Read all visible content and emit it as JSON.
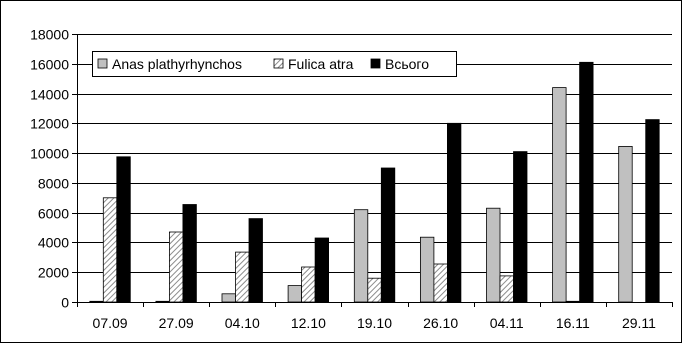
{
  "chart_data": {
    "type": "bar",
    "title": "",
    "xlabel": "",
    "ylabel": "",
    "categories": [
      "07.09",
      "27.09",
      "04.10",
      "12.10",
      "19.10",
      "26.10",
      "04.11",
      "16.11",
      "29.11"
    ],
    "ylim": [
      0,
      18000
    ],
    "yticks": [
      "0",
      "2000",
      "4000",
      "6000",
      "8000",
      "10000",
      "12000",
      "14000",
      "16000",
      "18000"
    ],
    "grid": true,
    "legend_position": "top-left",
    "series": [
      {
        "name": "Anas plathyrhynchos",
        "color": "#c0c0c0",
        "pattern": "solid",
        "values": [
          50,
          50,
          550,
          1100,
          6200,
          4350,
          6300,
          14400,
          10450
        ]
      },
      {
        "name": "Fulica atra",
        "color": "#bdbdbd",
        "pattern": "hatched",
        "values": [
          7000,
          4700,
          3350,
          2350,
          1600,
          2550,
          1750,
          50,
          0
        ]
      },
      {
        "name": "Всього",
        "color": "#000000",
        "pattern": "solid",
        "values": [
          9750,
          6550,
          5600,
          4300,
          9000,
          12000,
          10100,
          16100,
          12250
        ]
      }
    ]
  }
}
